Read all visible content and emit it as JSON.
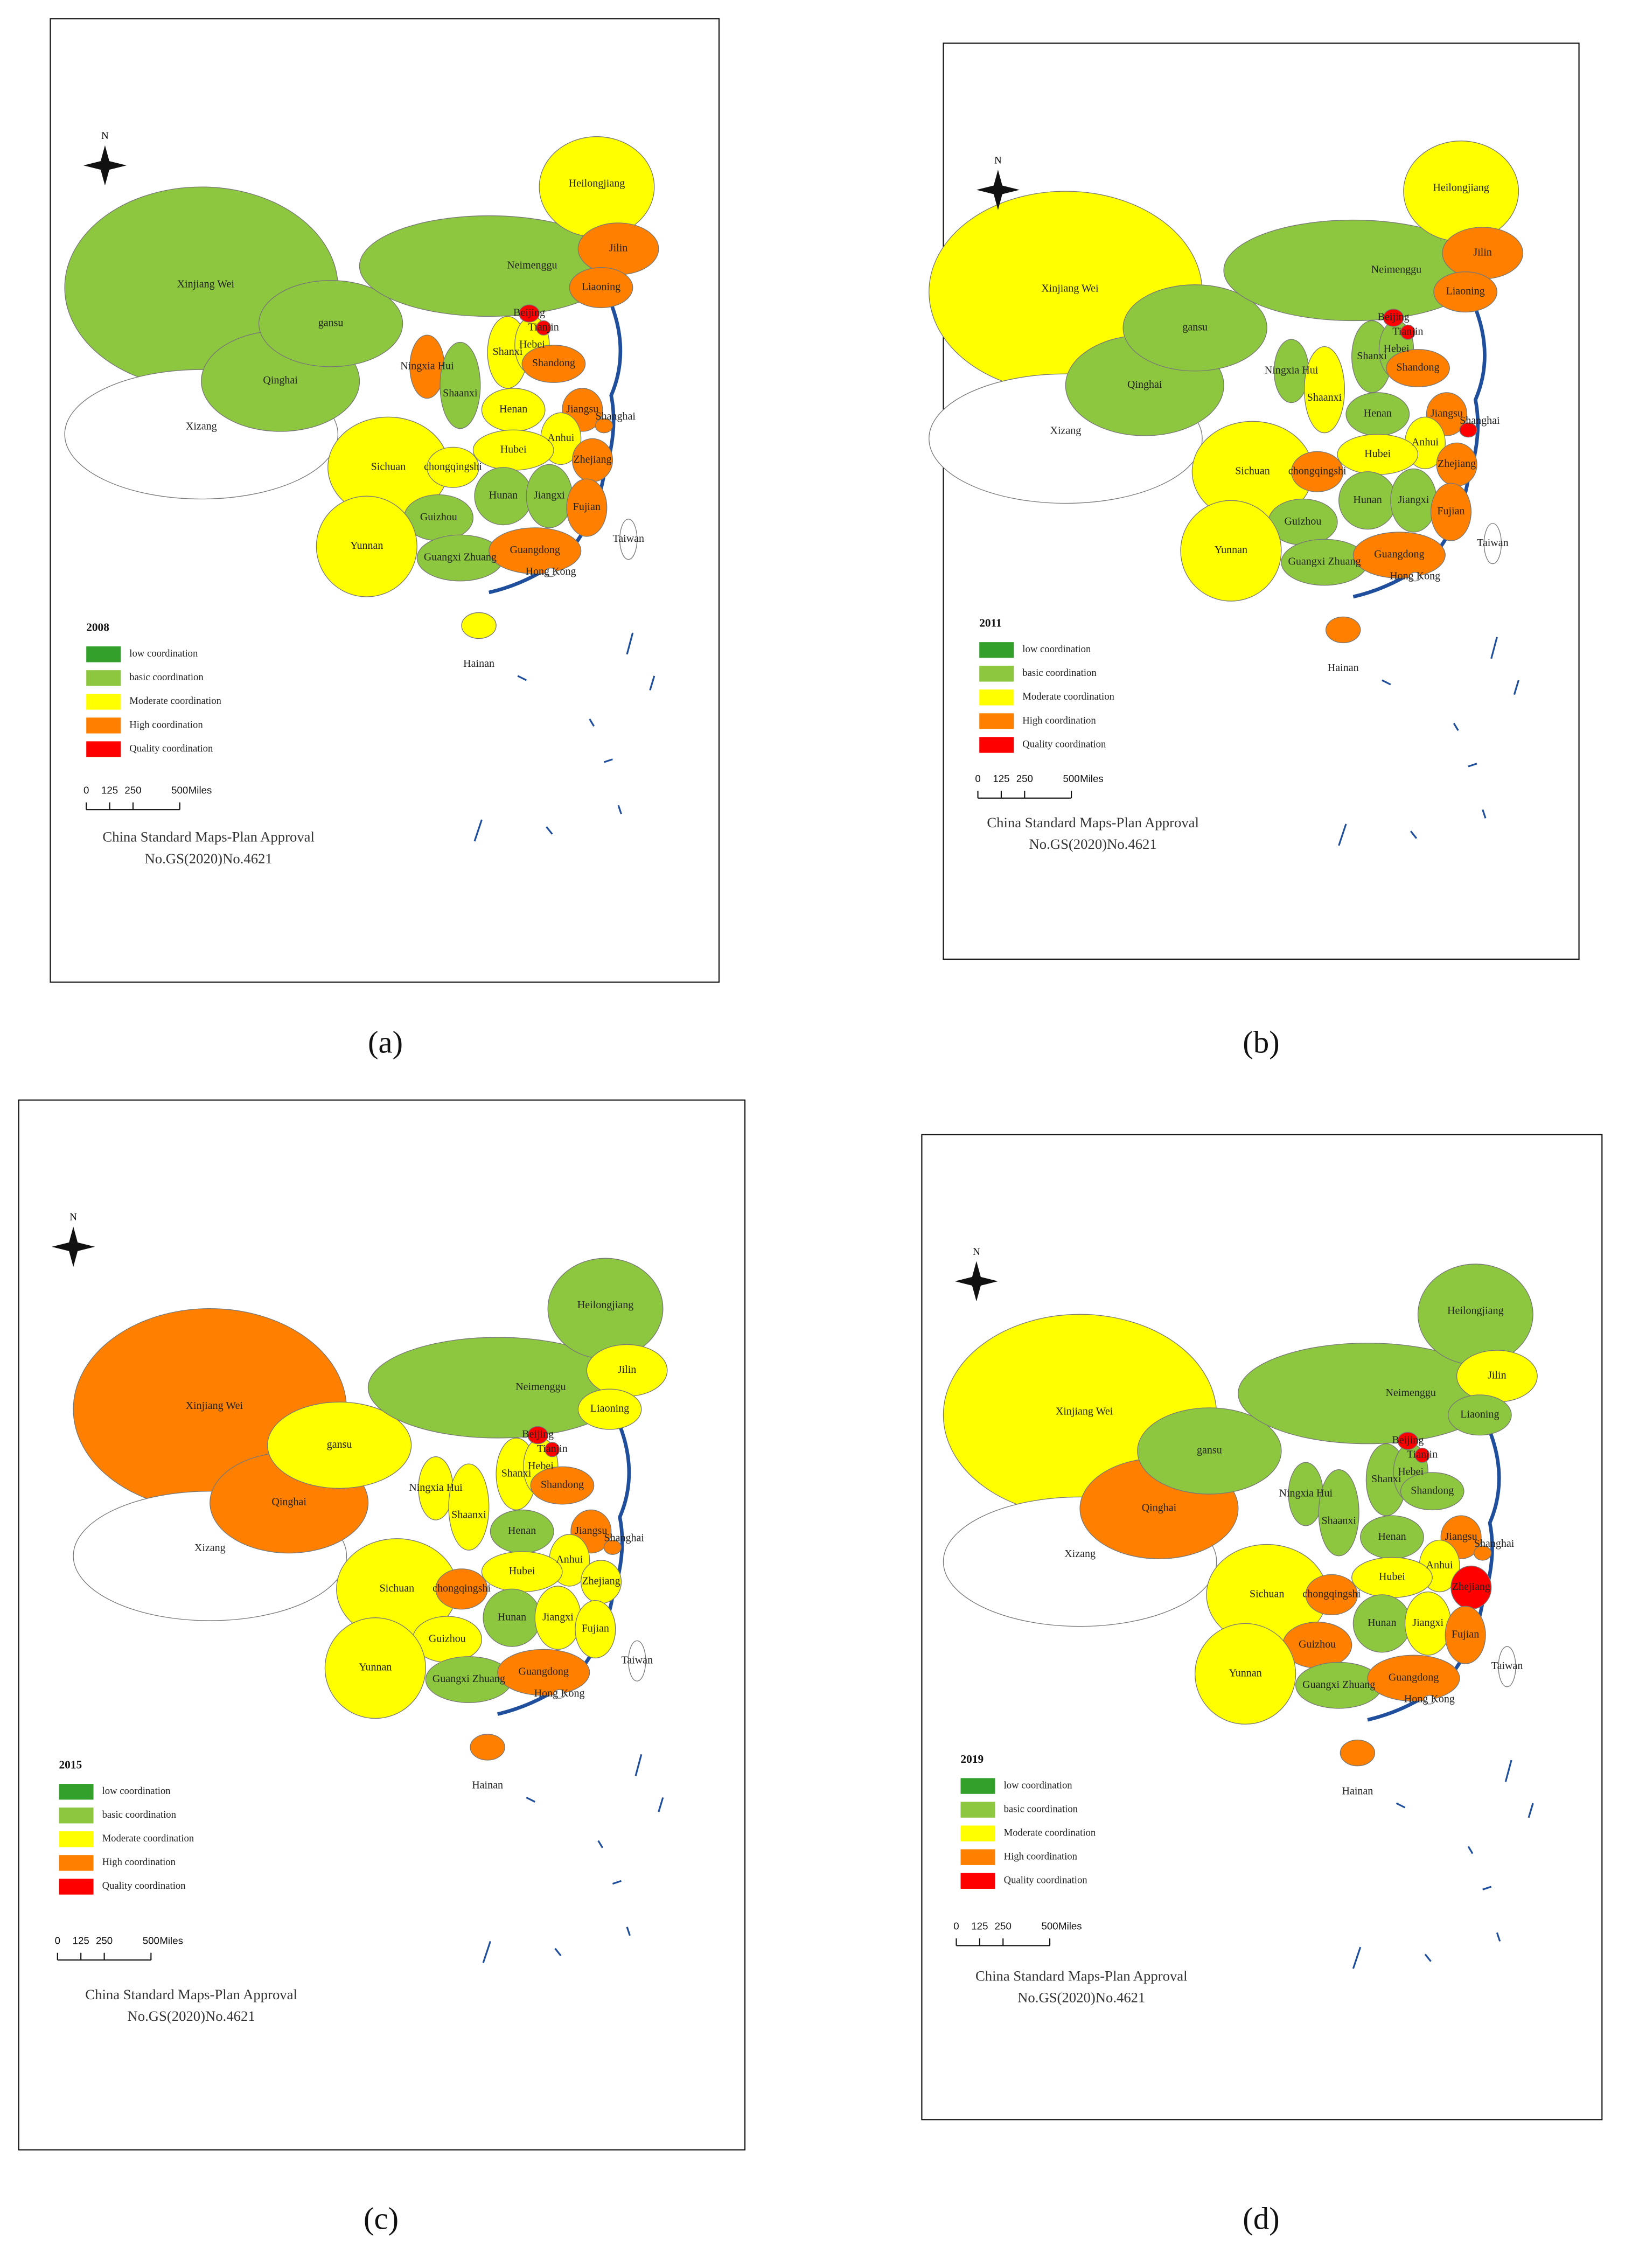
{
  "provinces": [
    "Xinjiang Wei",
    "Xizang",
    "Qinghai",
    "gansu",
    "Neimenggu",
    "Heilongjiang",
    "Jilin",
    "Liaoning",
    "Ningxia Hui",
    "Shaanxi",
    "Shanxi",
    "Hebei",
    "Beijing",
    "Tianjin",
    "Shandong",
    "Henan",
    "Jiangsu",
    "Shanghai",
    "Anhui",
    "Hubei",
    "Zhejiang",
    "Sichuan",
    "chongqingshi",
    "Guizhou",
    "Hunan",
    "Jiangxi",
    "Fujian",
    "Yunnan",
    "Guangxi Zhuang",
    "Guangdong",
    "Hong Kong",
    "Taiwan",
    "Hainan"
  ],
  "legend": [
    {
      "label": "low coordination",
      "color": "#33a02c"
    },
    {
      "label": "basic coordination",
      "color": "#8dc63f"
    },
    {
      "label": "Moderate coordination",
      "color": "#ffff00"
    },
    {
      "label": "High coordination",
      "color": "#ff8000"
    },
    {
      "label": "Quality coordination",
      "color": "#ff0000"
    }
  ],
  "scale_bar": {
    "ticks": [
      0,
      125,
      250,
      500
    ],
    "unit": "Miles"
  },
  "approval_note": [
    "China Standard Maps-Plan Approval",
    "No.GS(2020)No.4621"
  ],
  "panels": [
    {
      "caption": "(a)",
      "year": 2008,
      "colors": [
        "#8dc63f",
        "#ffffff",
        "#8dc63f",
        "#8dc63f",
        "#8dc63f",
        "#ffff00",
        "#ff8000",
        "#ff8000",
        "#ff8000",
        "#8dc63f",
        "#ffff00",
        "#ffff00",
        "#ff0000",
        "#ff0000",
        "#ff8000",
        "#ffff00",
        "#ff8000",
        "#ff8000",
        "#ffff00",
        "#ffff00",
        "#ff8000",
        "#ffff00",
        "#ffff00",
        "#8dc63f",
        "#8dc63f",
        "#8dc63f",
        "#ff8000",
        "#ffff00",
        "#8dc63f",
        "#ff8000",
        "#ffffff",
        "#ffffff",
        "#ffff00"
      ]
    },
    {
      "caption": "(b)",
      "year": 2011,
      "colors": [
        "#ffff00",
        "#ffffff",
        "#8dc63f",
        "#8dc63f",
        "#8dc63f",
        "#ffff00",
        "#ff8000",
        "#ff8000",
        "#8dc63f",
        "#ffff00",
        "#8dc63f",
        "#8dc63f",
        "#ff0000",
        "#ff0000",
        "#ff8000",
        "#8dc63f",
        "#ff8000",
        "#ff0000",
        "#ffff00",
        "#ffff00",
        "#ff8000",
        "#ffff00",
        "#ff8000",
        "#8dc63f",
        "#8dc63f",
        "#8dc63f",
        "#ff8000",
        "#ffff00",
        "#8dc63f",
        "#ff8000",
        "#ffffff",
        "#ffffff",
        "#ff8000"
      ]
    },
    {
      "caption": "(c)",
      "year": 2015,
      "colors": [
        "#ff8000",
        "#ffffff",
        "#ff8000",
        "#ffff00",
        "#8dc63f",
        "#8dc63f",
        "#ffff00",
        "#ffff00",
        "#ffff00",
        "#ffff00",
        "#ffff00",
        "#ffff00",
        "#ff0000",
        "#ff0000",
        "#ff8000",
        "#8dc63f",
        "#ff8000",
        "#ff8000",
        "#ffff00",
        "#ffff00",
        "#ffff00",
        "#ffff00",
        "#ff8000",
        "#ffff00",
        "#8dc63f",
        "#ffff00",
        "#ffff00",
        "#ffff00",
        "#8dc63f",
        "#ff8000",
        "#ffffff",
        "#ffffff",
        "#ff8000"
      ]
    },
    {
      "caption": "(d)",
      "year": 2019,
      "colors": [
        "#ffff00",
        "#ffffff",
        "#ff8000",
        "#8dc63f",
        "#8dc63f",
        "#8dc63f",
        "#ffff00",
        "#8dc63f",
        "#8dc63f",
        "#8dc63f",
        "#8dc63f",
        "#8dc63f",
        "#ff0000",
        "#ff0000",
        "#8dc63f",
        "#8dc63f",
        "#ff8000",
        "#ff8000",
        "#ffff00",
        "#ffff00",
        "#ff0000",
        "#ffff00",
        "#ff8000",
        "#ff8000",
        "#8dc63f",
        "#ffff00",
        "#ff8000",
        "#ffff00",
        "#8dc63f",
        "#ff8000",
        "#ffffff",
        "#ffffff",
        "#ff8000"
      ]
    }
  ]
}
